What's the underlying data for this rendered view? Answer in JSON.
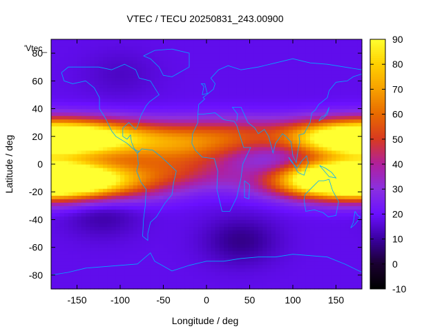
{
  "chart_data": {
    "type": "heatmap",
    "title": "VTEC / TECU 20250831_243.00900",
    "xlabel": "Longitude / deg",
    "ylabel": "Latitude / deg",
    "series_label": "'Vtec_",
    "xlim": [
      -180,
      180
    ],
    "ylim": [
      -90,
      90
    ],
    "x_ticks": [
      -150,
      -100,
      -50,
      0,
      50,
      100,
      150
    ],
    "y_ticks": [
      -80,
      -60,
      -40,
      -20,
      0,
      20,
      40,
      60,
      80
    ],
    "x_tick_labels": [
      "-150",
      "-100",
      "-50",
      "0",
      "50",
      "100",
      "150"
    ],
    "y_tick_labels": [
      "-80",
      "-60",
      "-40",
      "-20",
      "0",
      "20",
      "40",
      "60",
      "80"
    ],
    "colorbar": {
      "range": [
        -10,
        90
      ],
      "ticks": [
        -10,
        0,
        10,
        20,
        30,
        40,
        50,
        60,
        70,
        80,
        90
      ],
      "tick_labels": [
        "-10",
        "0",
        "10",
        "20",
        "30",
        "40",
        "50",
        "60",
        "70",
        "80",
        "90"
      ],
      "palette": [
        "#000000",
        "#1a0030",
        "#3a00a0",
        "#6a10ff",
        "#8a30e0",
        "#b0209c",
        "#d83a20",
        "#e86a00",
        "#f7a000",
        "#ffd000",
        "#ffff30"
      ]
    },
    "grid": false,
    "lon_step": 5,
    "lat_step": 2.5,
    "model": {
      "background": 18,
      "crests": [
        {
          "lon": -175,
          "lat": 18,
          "amp": 60
        },
        {
          "lon": -110,
          "lat": 20,
          "amp": 32
        },
        {
          "lon": -30,
          "lat": 12,
          "amp": 28
        },
        {
          "lon": 20,
          "lat": 22,
          "amp": 26
        },
        {
          "lon": 160,
          "lat": 20,
          "amp": 42
        },
        {
          "lon": 170,
          "lat": -10,
          "amp": 52
        },
        {
          "lon": 140,
          "lat": -12,
          "amp": 44
        },
        {
          "lon": -175,
          "lat": -10,
          "amp": 44
        },
        {
          "lon": -120,
          "lat": -15,
          "amp": 26
        },
        {
          "lon": -40,
          "lat": -5,
          "amp": 24
        }
      ],
      "troughs": [
        {
          "lon": -120,
          "lat": -35,
          "amp": -8
        },
        {
          "lon": 80,
          "lat": 0,
          "amp": -8
        },
        {
          "lon": 40,
          "lat": -55,
          "amp": -10
        },
        {
          "lon": -100,
          "lat": 65,
          "amp": -4
        }
      ]
    }
  }
}
